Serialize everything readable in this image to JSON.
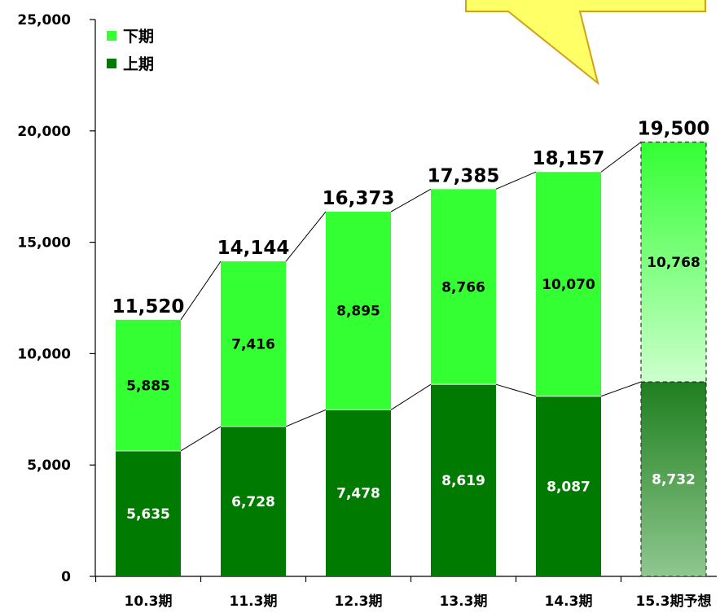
{
  "chart_data": {
    "type": "bar",
    "stacked": true,
    "categories": [
      "10.3期",
      "11.3期",
      "12.3期",
      "13.3期",
      "14.3期",
      "15.3期予想"
    ],
    "series": [
      {
        "name": "上期",
        "values": [
          5635,
          6728,
          7478,
          8619,
          8087,
          8732
        ],
        "labels": [
          "5,635",
          "6,728",
          "7,478",
          "8,619",
          "8,087",
          "8,732"
        ]
      },
      {
        "name": "下期",
        "values": [
          5885,
          7416,
          8895,
          8766,
          10070,
          10768
        ],
        "labels": [
          "5,885",
          "7,416",
          "8,895",
          "8,766",
          "10,070",
          "10,768"
        ]
      }
    ],
    "totals": [
      11520,
      14144,
      16373,
      17385,
      18157,
      19500
    ],
    "total_labels": [
      "11,520",
      "14,144",
      "16,373",
      "17,385",
      "18,157",
      "19,500"
    ],
    "forecast_index": 5,
    "ylim": [
      0,
      25000
    ],
    "yticks": [
      0,
      5000,
      10000,
      15000,
      20000,
      25000
    ],
    "ytick_labels": [
      "0",
      "5,000",
      "10,000",
      "15,000",
      "20,000",
      "25,000"
    ],
    "legend": [
      {
        "name": "下期",
        "color": "#33ff33"
      },
      {
        "name": "上期",
        "color": "#007a00"
      }
    ],
    "legend_position": "top-left",
    "colors": {
      "upper_half": "#007a00",
      "lower_half": "#33ff33"
    },
    "grid": false
  }
}
